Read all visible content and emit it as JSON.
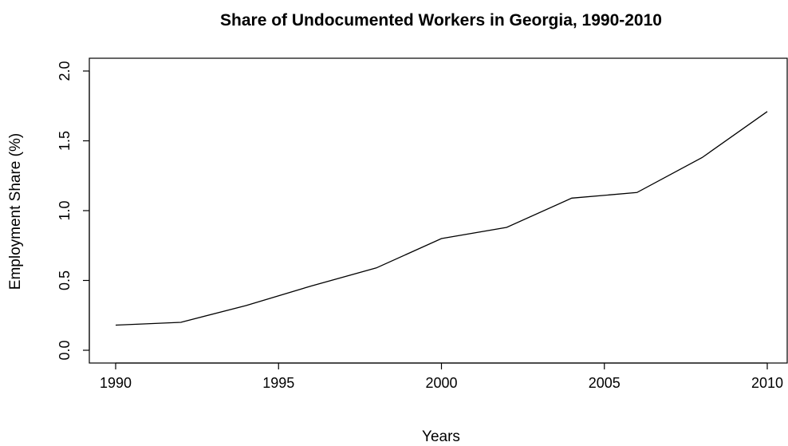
{
  "chart_data": {
    "type": "line",
    "title": "Share of Undocumented Workers in Georgia, 1990-2010",
    "xlabel": "Years",
    "ylabel": "Employment Share (%)",
    "xlim": [
      1990,
      2010
    ],
    "ylim": [
      0,
      2
    ],
    "x_ticks": [
      1990,
      1995,
      2000,
      2005,
      2010
    ],
    "y_ticks": [
      "0.0",
      "0.5",
      "1.0",
      "1.5",
      "2.0"
    ],
    "grid": false,
    "legend": "none",
    "series": [
      {
        "color": "#000000",
        "x": [
          1990,
          1992,
          1994,
          1996,
          1998,
          2000,
          2002,
          2004,
          2006,
          2008,
          2010
        ],
        "y": [
          0.18,
          0.2,
          0.32,
          0.46,
          0.59,
          0.8,
          0.88,
          1.09,
          1.13,
          1.38,
          1.71
        ]
      }
    ]
  }
}
